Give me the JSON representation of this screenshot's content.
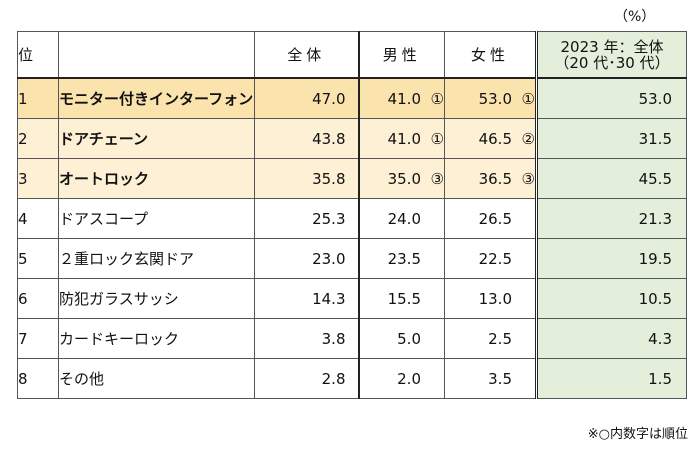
{
  "unit": "（%）",
  "footnote": "※○内数字は順位",
  "headers": {
    "rank": "位",
    "item": "",
    "total": "全体",
    "male": "男性",
    "female": "女性",
    "y2023_line1": "2023 年：全体",
    "y2023_line2": "（20 代･30 代）"
  },
  "rows": [
    {
      "rank": "1",
      "item": "モニター付きインターフォン",
      "total": "47.0",
      "male": "41.0",
      "male_rank": "①",
      "female": "53.0",
      "female_rank": "①",
      "y2023": "53.0"
    },
    {
      "rank": "2",
      "item": "ドアチェーン",
      "total": "43.8",
      "male": "41.0",
      "male_rank": "①",
      "female": "46.5",
      "female_rank": "②",
      "y2023": "31.5"
    },
    {
      "rank": "3",
      "item": "オートロック",
      "total": "35.8",
      "male": "35.0",
      "male_rank": "③",
      "female": "36.5",
      "female_rank": "③",
      "y2023": "45.5"
    },
    {
      "rank": "4",
      "item": "ドアスコープ",
      "total": "25.3",
      "male": "24.0",
      "male_rank": "",
      "female": "26.5",
      "female_rank": "",
      "y2023": "21.3"
    },
    {
      "rank": "5",
      "item": "２重ロック玄関ドア",
      "total": "23.0",
      "male": "23.5",
      "male_rank": "",
      "female": "22.5",
      "female_rank": "",
      "y2023": "19.5"
    },
    {
      "rank": "6",
      "item": "防犯ガラスサッシ",
      "total": "14.3",
      "male": "15.5",
      "male_rank": "",
      "female": "13.0",
      "female_rank": "",
      "y2023": "10.5"
    },
    {
      "rank": "7",
      "item": "カードキーロック",
      "total": "3.8",
      "male": "5.0",
      "male_rank": "",
      "female": "2.5",
      "female_rank": "",
      "y2023": "4.3"
    },
    {
      "rank": "8",
      "item": "その他",
      "total": "2.8",
      "male": "2.0",
      "male_rank": "",
      "female": "3.5",
      "female_rank": "",
      "y2023": "1.5"
    }
  ],
  "colors": {
    "rank1_fill": "#fbe3ad",
    "top3_fill": "#fdf0d5",
    "y2023_fill": "#e3efdb"
  }
}
